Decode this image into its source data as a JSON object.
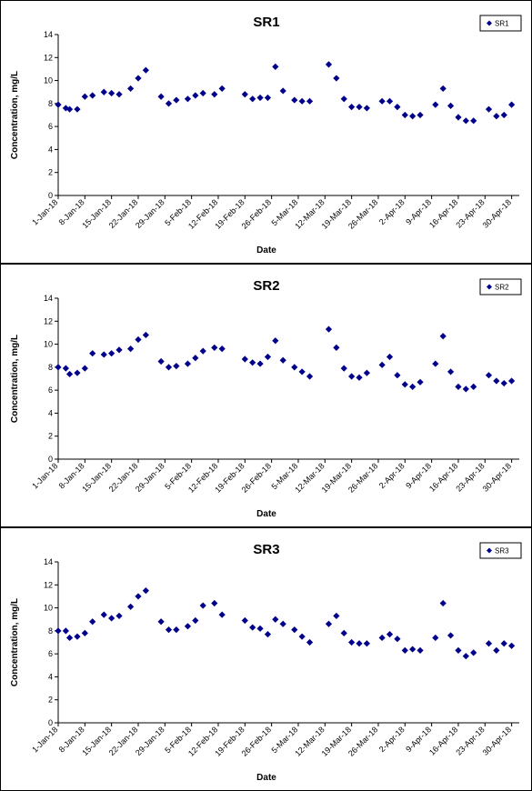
{
  "chart_data": [
    {
      "type": "scatter",
      "title": "SR1",
      "xlabel": "Date",
      "ylabel": "Concentration, mg/L",
      "ylim": [
        0,
        14
      ],
      "yticks": [
        0,
        2,
        4,
        6,
        8,
        10,
        12,
        14
      ],
      "xlim": [
        "1-Jan-18",
        "2-May-18"
      ],
      "xticks": [
        "1-Jan-18",
        "8-Jan-18",
        "15-Jan-18",
        "22-Jan-18",
        "29-Jan-18",
        "5-Feb-18",
        "12-Feb-18",
        "19-Feb-18",
        "26-Feb-18",
        "5-Mar-18",
        "12-Mar-18",
        "19-Mar-18",
        "26-Mar-18",
        "2-Apr-18",
        "9-Apr-18",
        "16-Apr-18",
        "23-Apr-18",
        "30-Apr-18"
      ],
      "grid": false,
      "legend_position": "top-right",
      "series": [
        {
          "name": "SR1",
          "color": "#00008B",
          "marker": "diamond",
          "points": [
            [
              "2018-01-01",
              7.9
            ],
            [
              "2018-01-03",
              7.6
            ],
            [
              "2018-01-04",
              7.5
            ],
            [
              "2018-01-06",
              7.5
            ],
            [
              "2018-01-08",
              8.6
            ],
            [
              "2018-01-10",
              8.7
            ],
            [
              "2018-01-13",
              9.0
            ],
            [
              "2018-01-15",
              8.9
            ],
            [
              "2018-01-17",
              8.8
            ],
            [
              "2018-01-20",
              9.3
            ],
            [
              "2018-01-22",
              10.2
            ],
            [
              "2018-01-24",
              10.9
            ],
            [
              "2018-01-28",
              8.6
            ],
            [
              "2018-01-30",
              8.0
            ],
            [
              "2018-02-01",
              8.3
            ],
            [
              "2018-02-04",
              8.4
            ],
            [
              "2018-02-06",
              8.7
            ],
            [
              "2018-02-08",
              8.9
            ],
            [
              "2018-02-11",
              8.8
            ],
            [
              "2018-02-13",
              9.3
            ],
            [
              "2018-02-19",
              8.8
            ],
            [
              "2018-02-21",
              8.4
            ],
            [
              "2018-02-23",
              8.5
            ],
            [
              "2018-02-25",
              8.5
            ],
            [
              "2018-02-27",
              11.2
            ],
            [
              "2018-03-01",
              9.1
            ],
            [
              "2018-03-04",
              8.3
            ],
            [
              "2018-03-06",
              8.2
            ],
            [
              "2018-03-08",
              8.2
            ],
            [
              "2018-03-13",
              11.4
            ],
            [
              "2018-03-15",
              10.2
            ],
            [
              "2018-03-17",
              8.4
            ],
            [
              "2018-03-19",
              7.7
            ],
            [
              "2018-03-21",
              7.7
            ],
            [
              "2018-03-23",
              7.6
            ],
            [
              "2018-03-27",
              8.2
            ],
            [
              "2018-03-29",
              8.2
            ],
            [
              "2018-03-31",
              7.7
            ],
            [
              "2018-04-02",
              7.0
            ],
            [
              "2018-04-04",
              6.9
            ],
            [
              "2018-04-06",
              7.0
            ],
            [
              "2018-04-10",
              7.9
            ],
            [
              "2018-04-12",
              9.3
            ],
            [
              "2018-04-14",
              7.8
            ],
            [
              "2018-04-16",
              6.8
            ],
            [
              "2018-04-18",
              6.5
            ],
            [
              "2018-04-20",
              6.5
            ],
            [
              "2018-04-24",
              7.5
            ],
            [
              "2018-04-26",
              6.9
            ],
            [
              "2018-04-28",
              7.0
            ],
            [
              "2018-04-30",
              7.9
            ]
          ]
        }
      ]
    },
    {
      "type": "scatter",
      "title": "SR2",
      "xlabel": "Date",
      "ylabel": "Concentration, mg/L",
      "ylim": [
        0,
        14
      ],
      "yticks": [
        0,
        2,
        4,
        6,
        8,
        10,
        12,
        14
      ],
      "xlim": [
        "1-Jan-18",
        "2-May-18"
      ],
      "xticks": [
        "1-Jan-18",
        "8-Jan-18",
        "15-Jan-18",
        "22-Jan-18",
        "29-Jan-18",
        "5-Feb-18",
        "12-Feb-18",
        "19-Feb-18",
        "26-Feb-18",
        "5-Mar-18",
        "12-Mar-18",
        "19-Mar-18",
        "26-Mar-18",
        "2-Apr-18",
        "9-Apr-18",
        "16-Apr-18",
        "23-Apr-18",
        "30-Apr-18"
      ],
      "grid": false,
      "legend_position": "top-right",
      "series": [
        {
          "name": "SR2",
          "color": "#00008B",
          "marker": "diamond",
          "points": [
            [
              "2018-01-01",
              8.0
            ],
            [
              "2018-01-03",
              7.9
            ],
            [
              "2018-01-04",
              7.4
            ],
            [
              "2018-01-06",
              7.5
            ],
            [
              "2018-01-08",
              7.9
            ],
            [
              "2018-01-10",
              9.2
            ],
            [
              "2018-01-13",
              9.1
            ],
            [
              "2018-01-15",
              9.2
            ],
            [
              "2018-01-17",
              9.5
            ],
            [
              "2018-01-20",
              9.6
            ],
            [
              "2018-01-22",
              10.4
            ],
            [
              "2018-01-24",
              10.8
            ],
            [
              "2018-01-28",
              8.5
            ],
            [
              "2018-01-30",
              8.0
            ],
            [
              "2018-02-01",
              8.1
            ],
            [
              "2018-02-04",
              8.3
            ],
            [
              "2018-02-06",
              8.8
            ],
            [
              "2018-02-08",
              9.4
            ],
            [
              "2018-02-11",
              9.7
            ],
            [
              "2018-02-13",
              9.6
            ],
            [
              "2018-02-19",
              8.7
            ],
            [
              "2018-02-21",
              8.4
            ],
            [
              "2018-02-23",
              8.3
            ],
            [
              "2018-02-25",
              8.9
            ],
            [
              "2018-02-27",
              10.3
            ],
            [
              "2018-03-01",
              8.6
            ],
            [
              "2018-03-04",
              8.0
            ],
            [
              "2018-03-06",
              7.6
            ],
            [
              "2018-03-08",
              7.2
            ],
            [
              "2018-03-13",
              11.3
            ],
            [
              "2018-03-15",
              9.7
            ],
            [
              "2018-03-17",
              7.9
            ],
            [
              "2018-03-19",
              7.2
            ],
            [
              "2018-03-21",
              7.1
            ],
            [
              "2018-03-23",
              7.5
            ],
            [
              "2018-03-27",
              8.2
            ],
            [
              "2018-03-29",
              8.9
            ],
            [
              "2018-03-31",
              7.3
            ],
            [
              "2018-04-02",
              6.5
            ],
            [
              "2018-04-04",
              6.3
            ],
            [
              "2018-04-06",
              6.7
            ],
            [
              "2018-04-10",
              8.3
            ],
            [
              "2018-04-12",
              10.7
            ],
            [
              "2018-04-14",
              7.6
            ],
            [
              "2018-04-16",
              6.3
            ],
            [
              "2018-04-18",
              6.1
            ],
            [
              "2018-04-20",
              6.3
            ],
            [
              "2018-04-24",
              7.3
            ],
            [
              "2018-04-26",
              6.8
            ],
            [
              "2018-04-28",
              6.6
            ],
            [
              "2018-04-30",
              6.8
            ]
          ]
        }
      ]
    },
    {
      "type": "scatter",
      "title": "SR3",
      "xlabel": "Date",
      "ylabel": "Concentration, mg/L",
      "ylim": [
        0,
        14
      ],
      "yticks": [
        0,
        2,
        4,
        6,
        8,
        10,
        12,
        14
      ],
      "xlim": [
        "1-Jan-18",
        "2-May-18"
      ],
      "xticks": [
        "1-Jan-18",
        "8-Jan-18",
        "15-Jan-18",
        "22-Jan-18",
        "29-Jan-18",
        "5-Feb-18",
        "12-Feb-18",
        "19-Feb-18",
        "26-Feb-18",
        "5-Mar-18",
        "12-Mar-18",
        "19-Mar-18",
        "26-Mar-18",
        "2-Apr-18",
        "9-Apr-18",
        "16-Apr-18",
        "23-Apr-18",
        "30-Apr-18"
      ],
      "grid": false,
      "legend_position": "top-right",
      "series": [
        {
          "name": "SR3",
          "color": "#00008B",
          "marker": "diamond",
          "points": [
            [
              "2018-01-01",
              8.0
            ],
            [
              "2018-01-03",
              8.0
            ],
            [
              "2018-01-04",
              7.4
            ],
            [
              "2018-01-06",
              7.5
            ],
            [
              "2018-01-08",
              7.8
            ],
            [
              "2018-01-10",
              8.8
            ],
            [
              "2018-01-13",
              9.4
            ],
            [
              "2018-01-15",
              9.1
            ],
            [
              "2018-01-17",
              9.3
            ],
            [
              "2018-01-20",
              10.1
            ],
            [
              "2018-01-22",
              11.0
            ],
            [
              "2018-01-24",
              11.5
            ],
            [
              "2018-01-28",
              8.8
            ],
            [
              "2018-01-30",
              8.1
            ],
            [
              "2018-02-01",
              8.1
            ],
            [
              "2018-02-04",
              8.4
            ],
            [
              "2018-02-06",
              8.9
            ],
            [
              "2018-02-08",
              10.2
            ],
            [
              "2018-02-11",
              10.4
            ],
            [
              "2018-02-13",
              9.4
            ],
            [
              "2018-02-19",
              8.9
            ],
            [
              "2018-02-21",
              8.3
            ],
            [
              "2018-02-23",
              8.2
            ],
            [
              "2018-02-25",
              7.7
            ],
            [
              "2018-02-27",
              9.0
            ],
            [
              "2018-03-01",
              8.6
            ],
            [
              "2018-03-04",
              8.1
            ],
            [
              "2018-03-06",
              7.5
            ],
            [
              "2018-03-08",
              7.0
            ],
            [
              "2018-03-13",
              8.6
            ],
            [
              "2018-03-15",
              9.3
            ],
            [
              "2018-03-17",
              7.8
            ],
            [
              "2018-03-19",
              7.0
            ],
            [
              "2018-03-21",
              6.9
            ],
            [
              "2018-03-23",
              6.9
            ],
            [
              "2018-03-27",
              7.4
            ],
            [
              "2018-03-29",
              7.7
            ],
            [
              "2018-03-31",
              7.3
            ],
            [
              "2018-04-02",
              6.3
            ],
            [
              "2018-04-04",
              6.4
            ],
            [
              "2018-04-06",
              6.3
            ],
            [
              "2018-04-10",
              7.4
            ],
            [
              "2018-04-12",
              10.4
            ],
            [
              "2018-04-14",
              7.6
            ],
            [
              "2018-04-16",
              6.3
            ],
            [
              "2018-04-18",
              5.8
            ],
            [
              "2018-04-20",
              6.1
            ],
            [
              "2018-04-24",
              6.9
            ],
            [
              "2018-04-26",
              6.3
            ],
            [
              "2018-04-28",
              6.9
            ],
            [
              "2018-04-30",
              6.7
            ]
          ]
        }
      ]
    }
  ]
}
